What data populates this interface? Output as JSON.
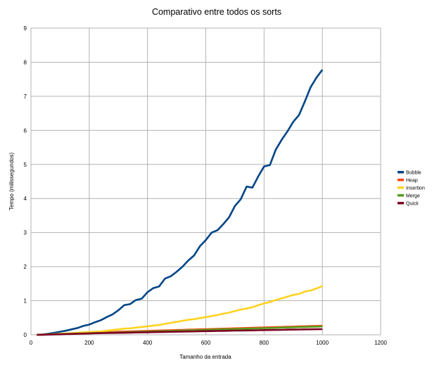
{
  "chart_data": {
    "type": "line",
    "title": "Comparativo entre todos os sorts",
    "xlabel": "Tamanho da entrada",
    "ylabel": "Tempo (milissegundos)",
    "xlim": [
      0,
      1200
    ],
    "ylim": [
      0,
      9
    ],
    "xticks": [
      0,
      200,
      400,
      600,
      800,
      1000,
      1200
    ],
    "yticks": [
      0,
      1,
      2,
      3,
      4,
      5,
      6,
      7,
      8,
      9
    ],
    "grid": true,
    "legend_position": "right",
    "x": [
      20,
      40,
      60,
      80,
      100,
      120,
      140,
      160,
      180,
      200,
      220,
      240,
      260,
      280,
      300,
      320,
      340,
      360,
      380,
      400,
      420,
      440,
      460,
      480,
      500,
      520,
      540,
      560,
      580,
      600,
      620,
      640,
      660,
      680,
      700,
      720,
      740,
      760,
      780,
      800,
      820,
      840,
      860,
      880,
      900,
      920,
      940,
      960,
      980,
      1000
    ],
    "series": [
      {
        "name": "Bubble",
        "color": "#004586",
        "values": [
          0.0,
          0.01,
          0.03,
          0.06,
          0.09,
          0.12,
          0.16,
          0.2,
          0.26,
          0.3,
          0.37,
          0.43,
          0.52,
          0.6,
          0.72,
          0.87,
          0.9,
          1.02,
          1.06,
          1.25,
          1.37,
          1.42,
          1.65,
          1.72,
          1.85,
          2.0,
          2.18,
          2.33,
          2.6,
          2.78,
          3.0,
          3.07,
          3.25,
          3.45,
          3.78,
          3.98,
          4.35,
          4.32,
          4.65,
          4.94,
          4.98,
          5.43,
          5.72,
          5.97,
          6.25,
          6.45,
          6.85,
          7.27,
          7.55,
          7.78
        ]
      },
      {
        "name": "Heap",
        "color": "#ff420e",
        "values": [
          0.0,
          0.005,
          0.01,
          0.02,
          0.025,
          0.03,
          0.04,
          0.045,
          0.05,
          0.06,
          0.065,
          0.07,
          0.075,
          0.08,
          0.09,
          0.095,
          0.1,
          0.105,
          0.11,
          0.115,
          0.12,
          0.125,
          0.13,
          0.135,
          0.14,
          0.145,
          0.15,
          0.155,
          0.16,
          0.165,
          0.17,
          0.175,
          0.18,
          0.185,
          0.19,
          0.195,
          0.2,
          0.205,
          0.21,
          0.215,
          0.22,
          0.225,
          0.23,
          0.235,
          0.24,
          0.245,
          0.25,
          0.255,
          0.26,
          0.265
        ]
      },
      {
        "name": "Insertion",
        "color": "#ffd320",
        "values": [
          0.0,
          0.005,
          0.01,
          0.02,
          0.03,
          0.04,
          0.05,
          0.06,
          0.07,
          0.08,
          0.09,
          0.1,
          0.12,
          0.14,
          0.16,
          0.18,
          0.19,
          0.21,
          0.23,
          0.25,
          0.27,
          0.29,
          0.32,
          0.35,
          0.38,
          0.41,
          0.44,
          0.46,
          0.49,
          0.52,
          0.55,
          0.58,
          0.62,
          0.65,
          0.7,
          0.74,
          0.77,
          0.81,
          0.87,
          0.92,
          0.96,
          1.02,
          1.07,
          1.12,
          1.17,
          1.2,
          1.27,
          1.3,
          1.36,
          1.43
        ]
      },
      {
        "name": "Merge",
        "color": "#579d1c",
        "values": [
          0.0,
          0.005,
          0.01,
          0.015,
          0.02,
          0.025,
          0.03,
          0.035,
          0.04,
          0.045,
          0.05,
          0.055,
          0.06,
          0.065,
          0.07,
          0.075,
          0.08,
          0.085,
          0.09,
          0.095,
          0.1,
          0.105,
          0.11,
          0.115,
          0.12,
          0.125,
          0.13,
          0.135,
          0.14,
          0.145,
          0.15,
          0.155,
          0.16,
          0.165,
          0.17,
          0.175,
          0.18,
          0.185,
          0.19,
          0.195,
          0.2,
          0.205,
          0.21,
          0.215,
          0.22,
          0.225,
          0.23,
          0.235,
          0.24,
          0.245
        ]
      },
      {
        "name": "Quick",
        "color": "#7e0021",
        "values": [
          0.0,
          0.003,
          0.006,
          0.01,
          0.015,
          0.02,
          0.025,
          0.03,
          0.035,
          0.04,
          0.045,
          0.05,
          0.052,
          0.055,
          0.058,
          0.06,
          0.065,
          0.068,
          0.07,
          0.075,
          0.078,
          0.08,
          0.085,
          0.088,
          0.09,
          0.095,
          0.098,
          0.1,
          0.105,
          0.108,
          0.11,
          0.113,
          0.115,
          0.12,
          0.123,
          0.125,
          0.128,
          0.13,
          0.135,
          0.138,
          0.14,
          0.143,
          0.145,
          0.15,
          0.153,
          0.155,
          0.158,
          0.16,
          0.163,
          0.165
        ]
      }
    ]
  }
}
